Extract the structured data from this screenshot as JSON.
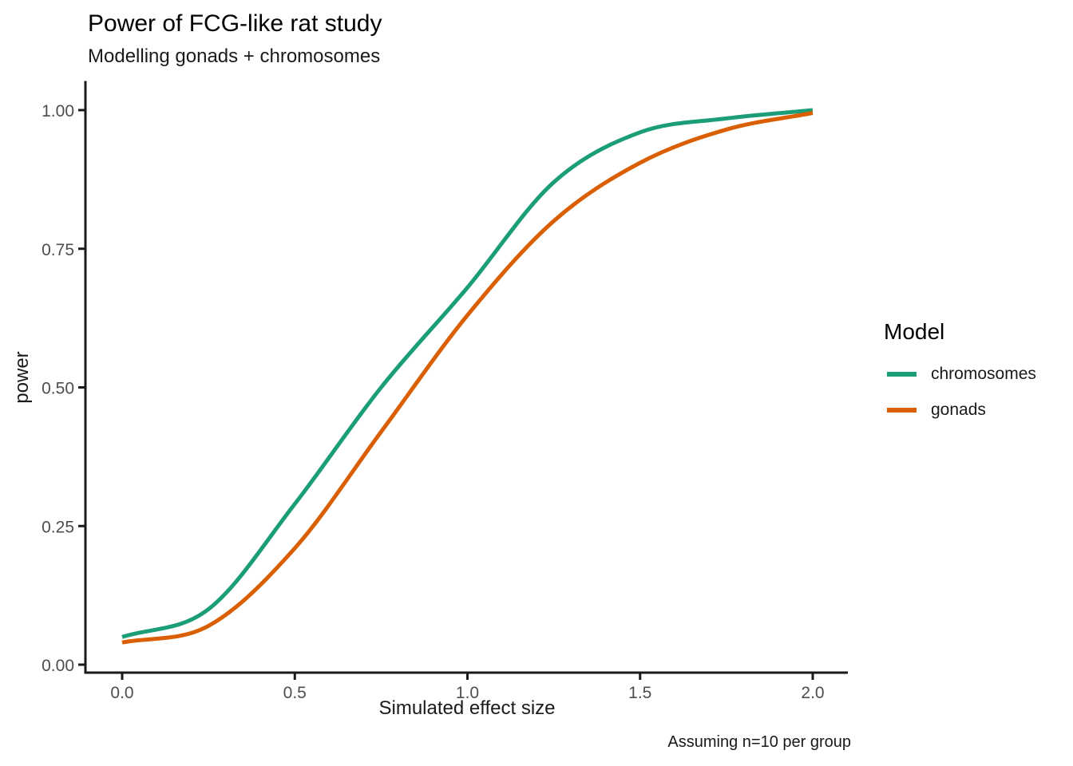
{
  "chart_data": {
    "type": "line",
    "title": "Power of FCG-like rat study",
    "subtitle": "Modelling gonads + chromosomes",
    "caption": "Assuming n=10 per group",
    "xlabel": "Simulated effect size",
    "ylabel": "power",
    "xlim": [
      0,
      2
    ],
    "ylim": [
      0,
      1
    ],
    "grid": false,
    "legend": {
      "title": "Model",
      "position": "right"
    },
    "x": [
      0,
      0.25,
      0.5,
      0.75,
      1.0,
      1.25,
      1.5,
      1.75,
      2.0
    ],
    "series": [
      {
        "name": "chromosomes",
        "color": "#1b9e77",
        "values": [
          0.05,
          0.1,
          0.29,
          0.5,
          0.68,
          0.87,
          0.96,
          0.985,
          1.0
        ]
      },
      {
        "name": "gonads",
        "color": "#d95f02",
        "values": [
          0.04,
          0.07,
          0.21,
          0.42,
          0.63,
          0.8,
          0.905,
          0.965,
          0.995
        ]
      }
    ],
    "x_ticks": {
      "values": [
        0,
        0.5,
        1.0,
        1.5,
        2.0
      ],
      "labels": [
        "0.0",
        "0.5",
        "1.0",
        "1.5",
        "2.0"
      ]
    },
    "y_ticks": {
      "values": [
        0,
        0.25,
        0.5,
        0.75,
        1.0
      ],
      "labels": [
        "0.00",
        "0.25",
        "0.50",
        "0.75",
        "1.00"
      ]
    }
  },
  "colors": {
    "series_chromosomes": "#1b9e77",
    "series_gonads": "#d95f02",
    "tick_label": "#4d4d4d",
    "axis_line": "#1a1a1a"
  }
}
